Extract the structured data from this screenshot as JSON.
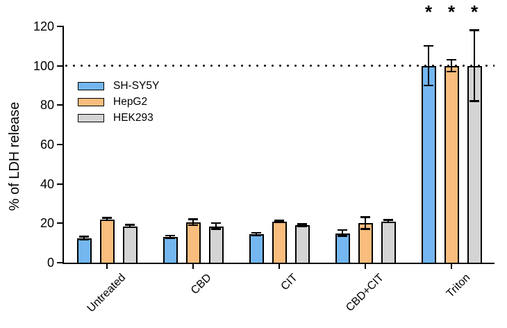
{
  "chart_data": {
    "type": "bar",
    "title": "",
    "xlabel": "",
    "ylabel": "% of LDH release",
    "ylim": [
      0,
      120
    ],
    "yticks": [
      0,
      20,
      40,
      60,
      80,
      100,
      120
    ],
    "grid": false,
    "legend_position": "upper-left-inside",
    "reference_line": {
      "y": 100,
      "style": "dotted",
      "color": "#000000"
    },
    "categories": [
      "Untreated",
      "CBD",
      "CIT",
      "CBD+CIT",
      "Triton"
    ],
    "series": [
      {
        "name": "SH-SY5Y",
        "color": "#74b7f0",
        "values": [
          12.5,
          13,
          14.5,
          15,
          100
        ],
        "errors": [
          0.7,
          0.7,
          0.6,
          1.5,
          10
        ],
        "significance": [
          "",
          "",
          "",
          "",
          "*"
        ]
      },
      {
        "name": "HepG2",
        "color": "#f9bd7d",
        "values": [
          22,
          20.5,
          21,
          20,
          100
        ],
        "errors": [
          0.6,
          1.5,
          0.5,
          3,
          3
        ],
        "significance": [
          "",
          "",
          "",
          "",
          "*"
        ]
      },
      {
        "name": "HEK293",
        "color": "#d4d4d4",
        "values": [
          18.5,
          18.5,
          19,
          21,
          100
        ],
        "errors": [
          0.6,
          1.5,
          0.5,
          0.7,
          18
        ],
        "significance": [
          "",
          "",
          "",
          "",
          "*"
        ]
      }
    ],
    "significance_marker": "*",
    "bar_edge_color": "#000000"
  }
}
